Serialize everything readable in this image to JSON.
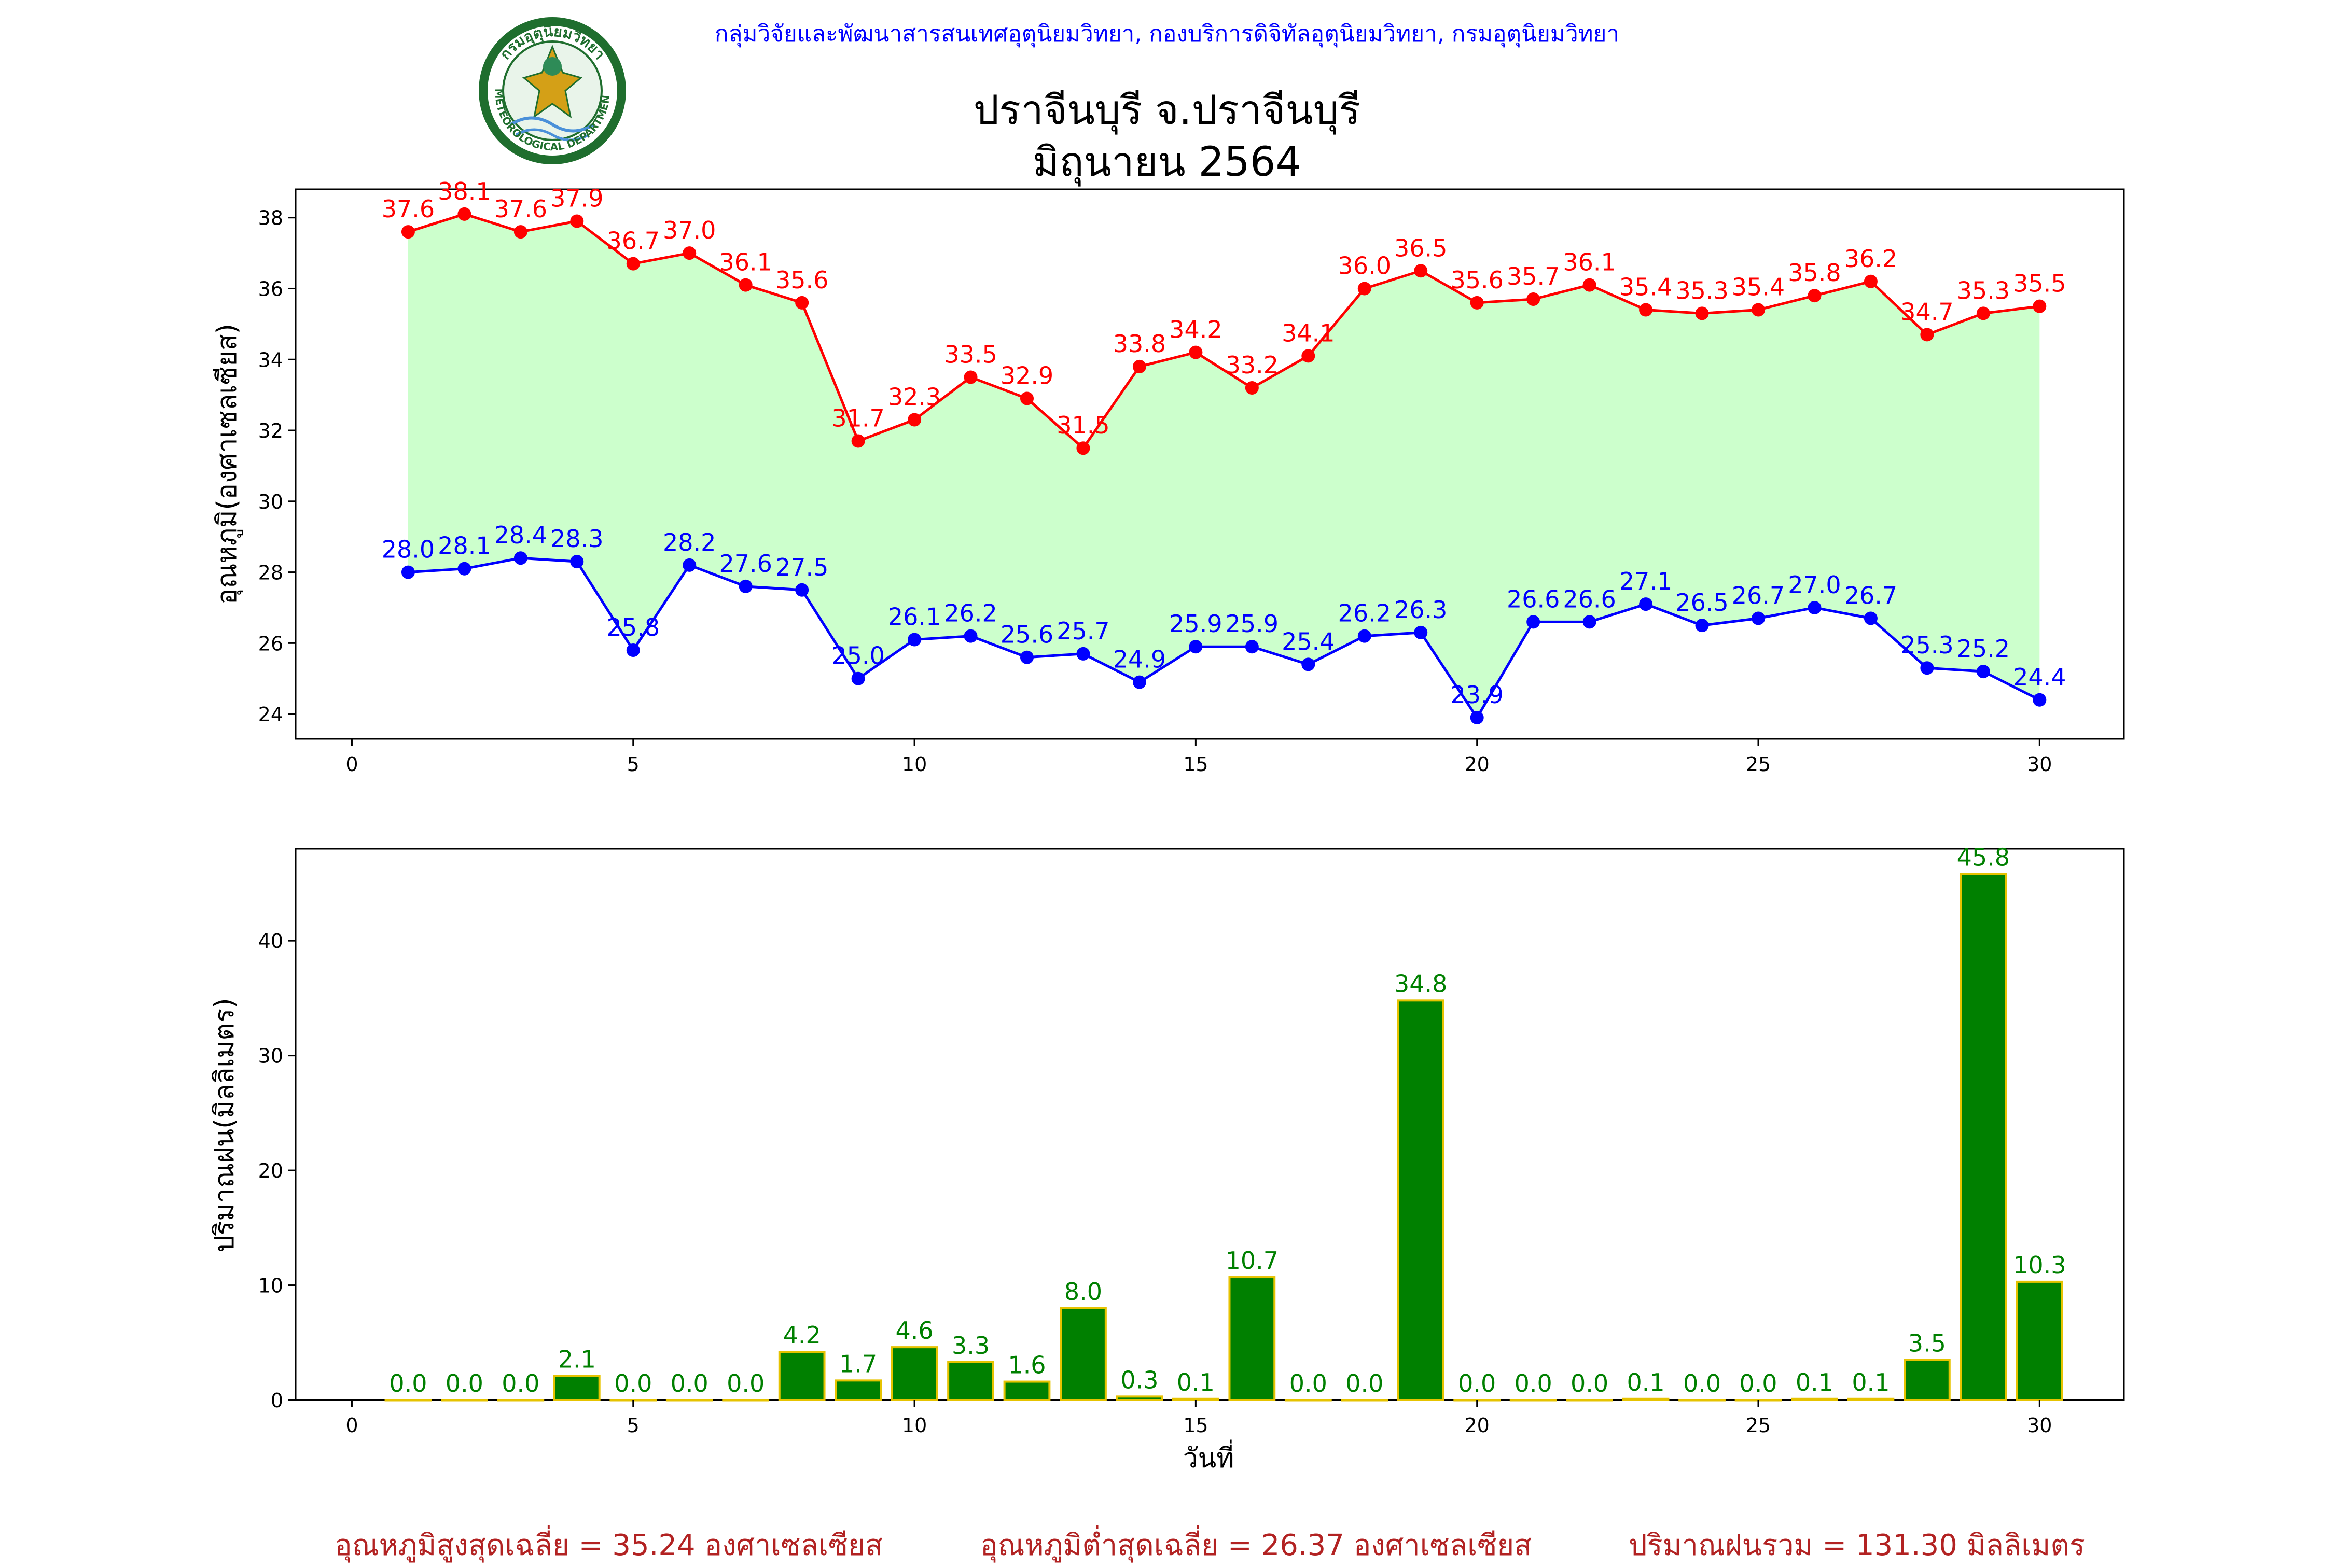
{
  "header": {
    "org": "กลุ่มวิจัยและพัฒนาสารสนเทศอุตุนิยมวิทยา, กองบริการดิจิทัลอุตุนิยมวิทยา, กรมอุตุนิยมวิทยา",
    "title_line1": "ปราจีนบุรี จ.ปราจีนบุรี",
    "title_line2": "มิถุนายน 2564",
    "logo_text_top": "กรมอุตุนิยมวิทยา",
    "logo_text_bottom": "METEOROLOGICAL DEPARTMENT"
  },
  "colors": {
    "max": "#ff0000",
    "min": "#0000ff",
    "fill": "#ccffcc",
    "bar": "#008000",
    "bar_edge": "#e6c300",
    "summary": "#b22222"
  },
  "chart_data": [
    {
      "type": "line",
      "ylabel": "อุณหภูมิ(องศาเซลเซียส)",
      "xlim": [
        -1,
        31.5
      ],
      "ylim": [
        23.3,
        38.8
      ],
      "xticks": [
        0,
        5,
        10,
        15,
        20,
        25,
        30
      ],
      "yticks": [
        24,
        26,
        28,
        30,
        32,
        34,
        36,
        38
      ],
      "x": [
        1,
        2,
        3,
        4,
        5,
        6,
        7,
        8,
        9,
        10,
        11,
        12,
        13,
        14,
        15,
        16,
        17,
        18,
        19,
        20,
        21,
        22,
        23,
        24,
        25,
        26,
        27,
        28,
        29,
        30
      ],
      "series": [
        {
          "key": "max",
          "values": [
            37.6,
            38.1,
            37.6,
            37.9,
            36.7,
            37.0,
            36.1,
            35.6,
            31.7,
            32.3,
            33.5,
            32.9,
            31.5,
            33.8,
            34.2,
            33.2,
            34.1,
            36.0,
            36.5,
            35.6,
            35.7,
            36.1,
            35.4,
            35.3,
            35.4,
            35.8,
            36.2,
            34.7,
            35.3,
            35.5
          ]
        },
        {
          "key": "min",
          "values": [
            28.0,
            28.1,
            28.4,
            28.3,
            25.8,
            28.2,
            27.6,
            27.5,
            25.0,
            26.1,
            26.2,
            25.6,
            25.7,
            24.9,
            25.9,
            25.9,
            25.4,
            26.2,
            26.3,
            23.9,
            26.6,
            26.6,
            27.1,
            26.5,
            26.7,
            27.0,
            26.7,
            25.3,
            25.2,
            24.4
          ]
        }
      ]
    },
    {
      "type": "bar",
      "ylabel": "ปริมาณฝน(มิลลิเมตร)",
      "xlabel": "วันที่",
      "xlim": [
        -1,
        31.5
      ],
      "ylim": [
        0,
        48
      ],
      "xticks": [
        0,
        5,
        10,
        15,
        20,
        25,
        30
      ],
      "yticks": [
        0,
        10,
        20,
        30,
        40
      ],
      "x": [
        1,
        2,
        3,
        4,
        5,
        6,
        7,
        8,
        9,
        10,
        11,
        12,
        13,
        14,
        15,
        16,
        17,
        18,
        19,
        20,
        21,
        22,
        23,
        24,
        25,
        26,
        27,
        28,
        29,
        30
      ],
      "values": [
        0.0,
        0.0,
        0.0,
        2.1,
        0.0,
        0.0,
        0.0,
        4.2,
        1.7,
        4.6,
        3.3,
        1.6,
        8.0,
        0.3,
        0.1,
        10.7,
        0.0,
        0.0,
        34.8,
        0.0,
        0.0,
        0.0,
        0.1,
        0.0,
        0.0,
        0.1,
        0.1,
        3.5,
        45.8,
        10.3
      ]
    }
  ],
  "summary": {
    "max_avg": "อุณหภูมิสูงสุดเฉลี่ย = 35.24 องศาเซลเซียส",
    "min_avg": "อุณหภูมิต่ำสุดเฉลี่ย = 26.37 องศาเซลเซียส",
    "rain_total": "ปริมาณฝนรวม = 131.30 มิลลิเมตร"
  }
}
